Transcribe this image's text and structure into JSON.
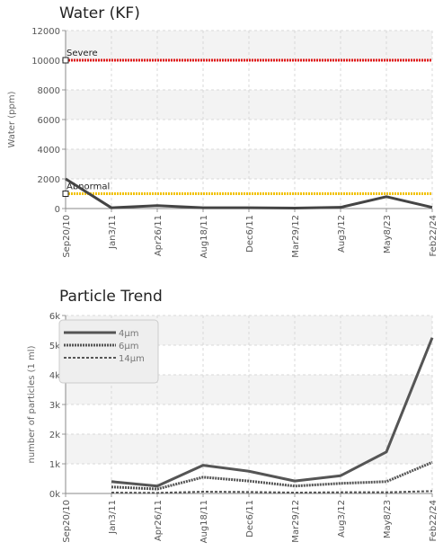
{
  "charts": {
    "water": {
      "title": "Water (KF)"
    },
    "particle": {
      "title": "Particle Trend"
    }
  },
  "chart_data": [
    {
      "type": "line",
      "title": "Water (KF)",
      "ylabel": "Water (ppm)",
      "xlabel": "",
      "x": [
        "Sep20/10",
        "Jan3/11",
        "Apr26/11",
        "Aug18/11",
        "Dec6/11",
        "Mar29/12",
        "Aug3/12",
        "May8/23",
        "Feb22/24"
      ],
      "ylim": [
        0,
        12000
      ],
      "yticks": [
        0,
        2000,
        4000,
        6000,
        8000,
        10000,
        12000
      ],
      "ytick_labels": [
        "0",
        "2000",
        "4000",
        "6000",
        "8000",
        "10000",
        "12000"
      ],
      "grid": true,
      "series": [
        {
          "values": [
            2000,
            50,
            200,
            50,
            50,
            30,
            80,
            800,
            80
          ],
          "color": "#444444"
        }
      ],
      "thresholds": [
        {
          "name": "Severe",
          "value": 10000,
          "color": "#e01818"
        },
        {
          "name": "Abnormal",
          "value": 1000,
          "color": "#f2c200"
        }
      ]
    },
    {
      "type": "line",
      "title": "Particle Trend",
      "ylabel": "number of particles (1 ml)",
      "xlabel": "",
      "x": [
        "Sep20/10",
        "Jan3/11",
        "Apr26/11",
        "Aug18/11",
        "Dec6/11",
        "Mar29/12",
        "Aug3/12",
        "May8/23",
        "Feb22/24"
      ],
      "ylim": [
        0,
        6000
      ],
      "yticks": [
        0,
        1000,
        2000,
        3000,
        4000,
        5000,
        6000
      ],
      "ytick_labels": [
        "0k",
        "1k",
        "2k",
        "3k",
        "4k",
        "5k",
        "6k"
      ],
      "grid": true,
      "legend_position": "top-left",
      "series": [
        {
          "name": "4μm",
          "values": [
            null,
            400,
            250,
            950,
            750,
            420,
            600,
            1400,
            5250
          ],
          "color": "#555555",
          "style": "solid"
        },
        {
          "name": "6μm",
          "values": [
            null,
            220,
            150,
            550,
            420,
            250,
            340,
            400,
            1050
          ],
          "color": "#555555",
          "style": "dotted"
        },
        {
          "name": "14μm",
          "values": [
            null,
            30,
            20,
            60,
            50,
            30,
            40,
            40,
            80
          ],
          "color": "#555555",
          "style": "dashed"
        }
      ]
    }
  ]
}
